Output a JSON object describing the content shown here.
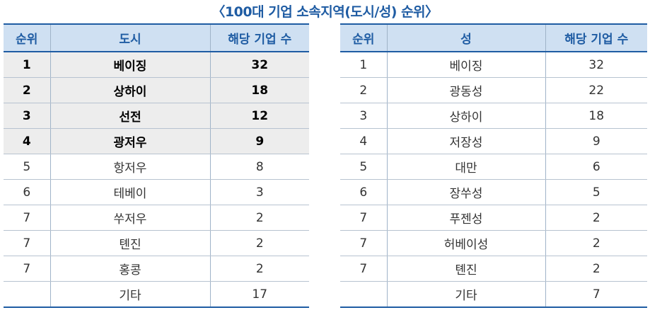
{
  "title": "〈100대 기업 소속지역(도시/성) 순위〉",
  "left_table": {
    "headers": [
      "순위",
      "도시",
      "해당 기업 수"
    ],
    "rows": [
      {
        "rank": "1",
        "name": "베이징",
        "count": "32",
        "highlight": true
      },
      {
        "rank": "2",
        "name": "상하이",
        "count": "18",
        "highlight": true
      },
      {
        "rank": "3",
        "name": "선전",
        "count": "12",
        "highlight": true
      },
      {
        "rank": "4",
        "name": "광저우",
        "count": "9",
        "highlight": true
      },
      {
        "rank": "5",
        "name": "항저우",
        "count": "8",
        "highlight": false
      },
      {
        "rank": "6",
        "name": "테베이",
        "count": "3",
        "highlight": false
      },
      {
        "rank": "7",
        "name": "쑤저우",
        "count": "2",
        "highlight": false
      },
      {
        "rank": "7",
        "name": "톈진",
        "count": "2",
        "highlight": false
      },
      {
        "rank": "7",
        "name": "홍콩",
        "count": "2",
        "highlight": false
      },
      {
        "rank": "",
        "name": "기타",
        "count": "17",
        "highlight": false
      }
    ]
  },
  "right_table": {
    "headers": [
      "순위",
      "성",
      "해당 기업 수"
    ],
    "rows": [
      {
        "rank": "1",
        "name": "베이징",
        "count": "32",
        "highlight": false
      },
      {
        "rank": "2",
        "name": "광동성",
        "count": "22",
        "highlight": false
      },
      {
        "rank": "3",
        "name": "상하이",
        "count": "18",
        "highlight": false
      },
      {
        "rank": "4",
        "name": "저장성",
        "count": "9",
        "highlight": false
      },
      {
        "rank": "5",
        "name": "대만",
        "count": "6",
        "highlight": false
      },
      {
        "rank": "6",
        "name": "장쑤성",
        "count": "5",
        "highlight": false
      },
      {
        "rank": "7",
        "name": "푸젠성",
        "count": "2",
        "highlight": false
      },
      {
        "rank": "7",
        "name": "허베이성",
        "count": "2",
        "highlight": false
      },
      {
        "rank": "7",
        "name": "톈진",
        "count": "2",
        "highlight": false
      },
      {
        "rank": "",
        "name": "기타",
        "count": "7",
        "highlight": false
      }
    ]
  },
  "colors": {
    "accent": "#1f5ca3",
    "header_bg": "#cfe0f2",
    "highlight_bg": "#ededed"
  }
}
